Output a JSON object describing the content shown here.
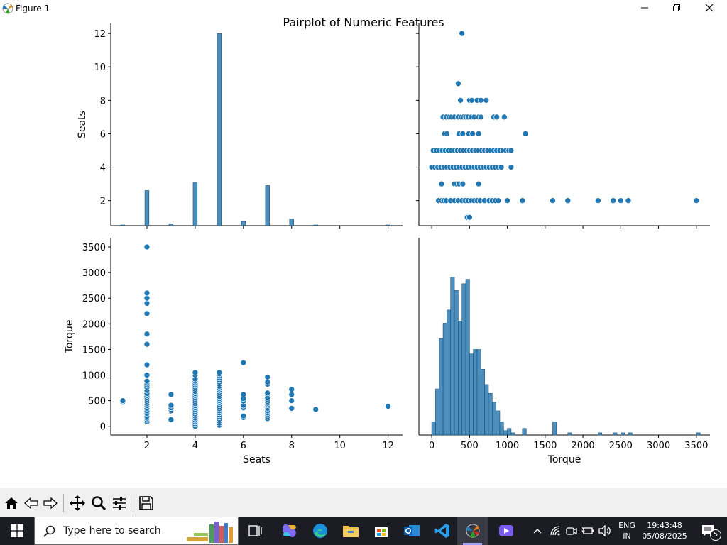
{
  "window": {
    "title": "Figure 1",
    "icon": "matplotlib-icon",
    "controls": [
      "minimize-icon",
      "restore-icon",
      "close-icon"
    ]
  },
  "figure": {
    "suptitle": "Pairplot of Numeric Features"
  },
  "chart_data": [
    {
      "type": "bar",
      "panel": "Seats vs Seats (histogram)",
      "xlabel": "",
      "ylabel": "Seats",
      "bin_centers": [
        1,
        2,
        3,
        4,
        5,
        6,
        7,
        8,
        9,
        12
      ],
      "values": [
        0.05,
        2.6,
        0.6,
        3.1,
        12.0,
        0.75,
        2.9,
        0.9,
        0.02,
        0.02
      ],
      "ylim": [
        0.5,
        12.6
      ],
      "yticks": [
        "2",
        "4",
        "6",
        "8",
        "10",
        "12"
      ],
      "xlim": [
        0.5,
        12.6
      ]
    },
    {
      "type": "scatter",
      "panel": "Seats vs Torque",
      "xlabel": "",
      "ylabel": "",
      "xlim": [
        -170,
        3680
      ],
      "ylim": [
        0.5,
        12.6
      ],
      "points": [
        [
          400,
          12
        ],
        [
          350,
          9
        ],
        [
          380,
          8
        ],
        [
          500,
          8
        ],
        [
          530,
          8
        ],
        [
          600,
          8
        ],
        [
          650,
          8
        ],
        [
          720,
          8
        ],
        [
          150,
          7
        ],
        [
          190,
          7
        ],
        [
          230,
          7
        ],
        [
          260,
          7
        ],
        [
          300,
          7
        ],
        [
          350,
          7
        ],
        [
          390,
          7
        ],
        [
          420,
          7
        ],
        [
          450,
          7
        ],
        [
          480,
          7
        ],
        [
          520,
          7
        ],
        [
          560,
          7
        ],
        [
          620,
          7
        ],
        [
          650,
          7
        ],
        [
          820,
          7
        ],
        [
          860,
          7
        ],
        [
          960,
          7
        ],
        [
          170,
          6
        ],
        [
          200,
          6
        ],
        [
          360,
          6
        ],
        [
          410,
          6
        ],
        [
          490,
          6
        ],
        [
          540,
          6
        ],
        [
          620,
          6
        ],
        [
          1240,
          6
        ],
        [
          20,
          5
        ],
        [
          60,
          5
        ],
        [
          100,
          5
        ],
        [
          140,
          5
        ],
        [
          180,
          5
        ],
        [
          220,
          5
        ],
        [
          260,
          5
        ],
        [
          300,
          5
        ],
        [
          340,
          5
        ],
        [
          380,
          5
        ],
        [
          420,
          5
        ],
        [
          460,
          5
        ],
        [
          500,
          5
        ],
        [
          540,
          5
        ],
        [
          580,
          5
        ],
        [
          620,
          5
        ],
        [
          660,
          5
        ],
        [
          700,
          5
        ],
        [
          740,
          5
        ],
        [
          780,
          5
        ],
        [
          820,
          5
        ],
        [
          860,
          5
        ],
        [
          900,
          5
        ],
        [
          940,
          5
        ],
        [
          980,
          5
        ],
        [
          1020,
          5
        ],
        [
          1050,
          5
        ],
        [
          0,
          4
        ],
        [
          40,
          4
        ],
        [
          80,
          4
        ],
        [
          120,
          4
        ],
        [
          160,
          4
        ],
        [
          200,
          4
        ],
        [
          240,
          4
        ],
        [
          280,
          4
        ],
        [
          320,
          4
        ],
        [
          360,
          4
        ],
        [
          400,
          4
        ],
        [
          440,
          4
        ],
        [
          480,
          4
        ],
        [
          520,
          4
        ],
        [
          560,
          4
        ],
        [
          600,
          4
        ],
        [
          640,
          4
        ],
        [
          680,
          4
        ],
        [
          720,
          4
        ],
        [
          760,
          4
        ],
        [
          800,
          4
        ],
        [
          840,
          4
        ],
        [
          880,
          4
        ],
        [
          920,
          4
        ],
        [
          1050,
          4
        ],
        [
          130,
          3
        ],
        [
          300,
          3
        ],
        [
          330,
          3
        ],
        [
          360,
          3
        ],
        [
          410,
          3
        ],
        [
          620,
          3
        ],
        [
          90,
          2
        ],
        [
          130,
          2
        ],
        [
          160,
          2
        ],
        [
          190,
          2
        ],
        [
          250,
          2
        ],
        [
          300,
          2
        ],
        [
          350,
          2
        ],
        [
          400,
          2
        ],
        [
          440,
          2
        ],
        [
          480,
          2
        ],
        [
          520,
          2
        ],
        [
          560,
          2
        ],
        [
          600,
          2
        ],
        [
          640,
          2
        ],
        [
          700,
          2
        ],
        [
          760,
          2
        ],
        [
          800,
          2
        ],
        [
          840,
          2
        ],
        [
          880,
          2
        ],
        [
          1000,
          2
        ],
        [
          1200,
          2
        ],
        [
          1600,
          2
        ],
        [
          1800,
          2
        ],
        [
          2200,
          2
        ],
        [
          2400,
          2
        ],
        [
          2500,
          2
        ],
        [
          2600,
          2
        ],
        [
          3500,
          2
        ],
        [
          470,
          1
        ],
        [
          500,
          1
        ]
      ]
    },
    {
      "type": "scatter",
      "panel": "Torque vs Seats",
      "xlabel": "Seats",
      "ylabel": "Torque",
      "xlim": [
        0.5,
        12.6
      ],
      "ylim": [
        -170,
        3680
      ],
      "xticks": [
        "2",
        "4",
        "6",
        "8",
        "10",
        "12"
      ],
      "yticks": [
        "0",
        "500",
        "1000",
        "1500",
        "2000",
        "2500",
        "3000",
        "3500"
      ],
      "points": [
        [
          1,
          470
        ],
        [
          1,
          500
        ],
        [
          2,
          90
        ],
        [
          2,
          130
        ],
        [
          2,
          160
        ],
        [
          2,
          190
        ],
        [
          2,
          250
        ],
        [
          2,
          300
        ],
        [
          2,
          350
        ],
        [
          2,
          400
        ],
        [
          2,
          440
        ],
        [
          2,
          480
        ],
        [
          2,
          520
        ],
        [
          2,
          560
        ],
        [
          2,
          600
        ],
        [
          2,
          640
        ],
        [
          2,
          700
        ],
        [
          2,
          760
        ],
        [
          2,
          800
        ],
        [
          2,
          840
        ],
        [
          2,
          880
        ],
        [
          2,
          1000
        ],
        [
          2,
          1200
        ],
        [
          2,
          1600
        ],
        [
          2,
          1800
        ],
        [
          2,
          2200
        ],
        [
          2,
          2400
        ],
        [
          2,
          2500
        ],
        [
          2,
          2600
        ],
        [
          2,
          3500
        ],
        [
          3,
          130
        ],
        [
          3,
          300
        ],
        [
          3,
          330
        ],
        [
          3,
          360
        ],
        [
          3,
          410
        ],
        [
          3,
          620
        ],
        [
          4,
          0
        ],
        [
          4,
          40
        ],
        [
          4,
          80
        ],
        [
          4,
          120
        ],
        [
          4,
          160
        ],
        [
          4,
          200
        ],
        [
          4,
          240
        ],
        [
          4,
          280
        ],
        [
          4,
          320
        ],
        [
          4,
          360
        ],
        [
          4,
          400
        ],
        [
          4,
          440
        ],
        [
          4,
          480
        ],
        [
          4,
          520
        ],
        [
          4,
          560
        ],
        [
          4,
          600
        ],
        [
          4,
          640
        ],
        [
          4,
          680
        ],
        [
          4,
          720
        ],
        [
          4,
          760
        ],
        [
          4,
          800
        ],
        [
          4,
          840
        ],
        [
          4,
          880
        ],
        [
          4,
          920
        ],
        [
          4,
          1000
        ],
        [
          4,
          1050
        ],
        [
          5,
          20
        ],
        [
          5,
          60
        ],
        [
          5,
          100
        ],
        [
          5,
          140
        ],
        [
          5,
          180
        ],
        [
          5,
          220
        ],
        [
          5,
          260
        ],
        [
          5,
          300
        ],
        [
          5,
          340
        ],
        [
          5,
          380
        ],
        [
          5,
          420
        ],
        [
          5,
          460
        ],
        [
          5,
          500
        ],
        [
          5,
          540
        ],
        [
          5,
          580
        ],
        [
          5,
          620
        ],
        [
          5,
          660
        ],
        [
          5,
          700
        ],
        [
          5,
          740
        ],
        [
          5,
          780
        ],
        [
          5,
          820
        ],
        [
          5,
          860
        ],
        [
          5,
          900
        ],
        [
          5,
          940
        ],
        [
          5,
          980
        ],
        [
          5,
          1020
        ],
        [
          5,
          1050
        ],
        [
          6,
          170
        ],
        [
          6,
          200
        ],
        [
          6,
          360
        ],
        [
          6,
          410
        ],
        [
          6,
          490
        ],
        [
          6,
          540
        ],
        [
          6,
          620
        ],
        [
          6,
          1240
        ],
        [
          7,
          150
        ],
        [
          7,
          190
        ],
        [
          7,
          230
        ],
        [
          7,
          260
        ],
        [
          7,
          300
        ],
        [
          7,
          350
        ],
        [
          7,
          390
        ],
        [
          7,
          420
        ],
        [
          7,
          450
        ],
        [
          7,
          480
        ],
        [
          7,
          520
        ],
        [
          7,
          560
        ],
        [
          7,
          620
        ],
        [
          7,
          650
        ],
        [
          7,
          820
        ],
        [
          7,
          860
        ],
        [
          7,
          960
        ],
        [
          8,
          350
        ],
        [
          8,
          500
        ],
        [
          8,
          620
        ],
        [
          8,
          720
        ],
        [
          9,
          330
        ],
        [
          12,
          390
        ]
      ]
    },
    {
      "type": "bar",
      "panel": "Torque vs Torque (histogram)",
      "xlabel": "Torque",
      "ylabel": "",
      "xlim": [
        -170,
        3680
      ],
      "xticks": [
        "0",
        "500",
        "1000",
        "1500",
        "2000",
        "2500",
        "3000",
        "3500"
      ],
      "bin_width": 50,
      "bin_starts": [
        0,
        50,
        100,
        150,
        200,
        250,
        300,
        350,
        400,
        450,
        500,
        550,
        600,
        650,
        700,
        750,
        800,
        850,
        900,
        950,
        1000,
        1050,
        1200,
        1600,
        1800,
        2200,
        2400,
        2500,
        2600,
        3500
      ],
      "values": [
        0.3,
        1.05,
        2.2,
        2.55,
        2.85,
        3.6,
        3.3,
        2.6,
        3.45,
        3.55,
        1.85,
        1.95,
        1.95,
        1.5,
        1.15,
        0.95,
        0.75,
        0.55,
        0.3,
        0.1,
        0.15,
        0.05,
        0.15,
        0.3,
        0.05,
        0.05,
        0.05,
        0.05,
        0.05,
        0.05
      ]
    }
  ],
  "toolbar": {
    "buttons": [
      "home-icon",
      "back-icon",
      "forward-icon",
      "pan-icon",
      "zoom-icon",
      "configure-icon",
      "save-icon"
    ]
  },
  "taskbar": {
    "search_placeholder": "Type here to search",
    "apps": [
      "task-view-icon",
      "copilot-icon",
      "edge-icon",
      "file-explorer-icon",
      "store-icon",
      "outlook-icon",
      "vscode-icon",
      "python-figure-icon",
      "clipchamp-icon"
    ],
    "language_top": "ENG",
    "language_bottom": "IN",
    "time": "19:43:48",
    "date": "05/08/2025",
    "notification_count": "5"
  },
  "colors": {
    "series": "#1f77b4",
    "bar_fill": "#4c8fbd",
    "taskbar": "#1c1c24",
    "toolbar": "#f0f0f0"
  }
}
